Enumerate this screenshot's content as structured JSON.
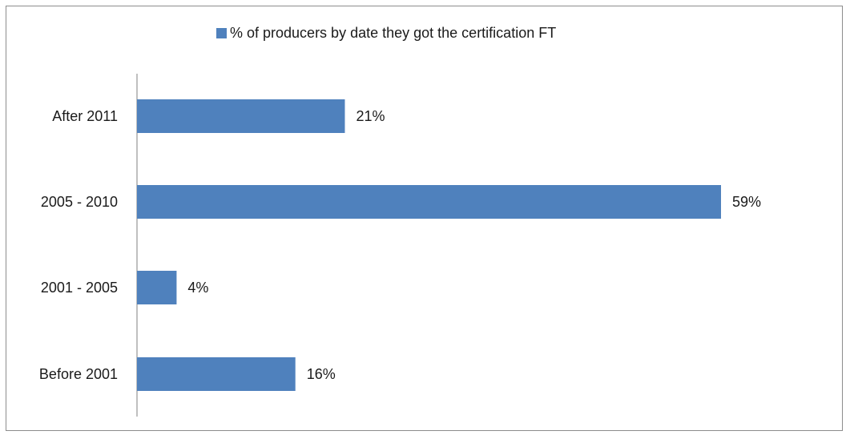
{
  "chart_data": {
    "type": "bar",
    "orientation": "horizontal",
    "title": "",
    "xlabel": "",
    "ylabel": "",
    "categories": [
      "Before 2001",
      "2001 - 2005",
      "2005 - 2010",
      "After 2011"
    ],
    "series": [
      {
        "name": "% of producers by date they got the certification FT",
        "values": [
          16,
          4,
          59,
          21
        ],
        "labels": [
          "16%",
          "4%",
          "59%",
          "21%"
        ],
        "color": "#4f81bd"
      }
    ],
    "xlim": [
      0,
      60
    ],
    "grid": false,
    "legend_position": "top-center"
  },
  "colors": {
    "bar": "#4f81bd",
    "axis": "#808080",
    "text": "#1a1a1a",
    "border": "#8c8c8c"
  }
}
